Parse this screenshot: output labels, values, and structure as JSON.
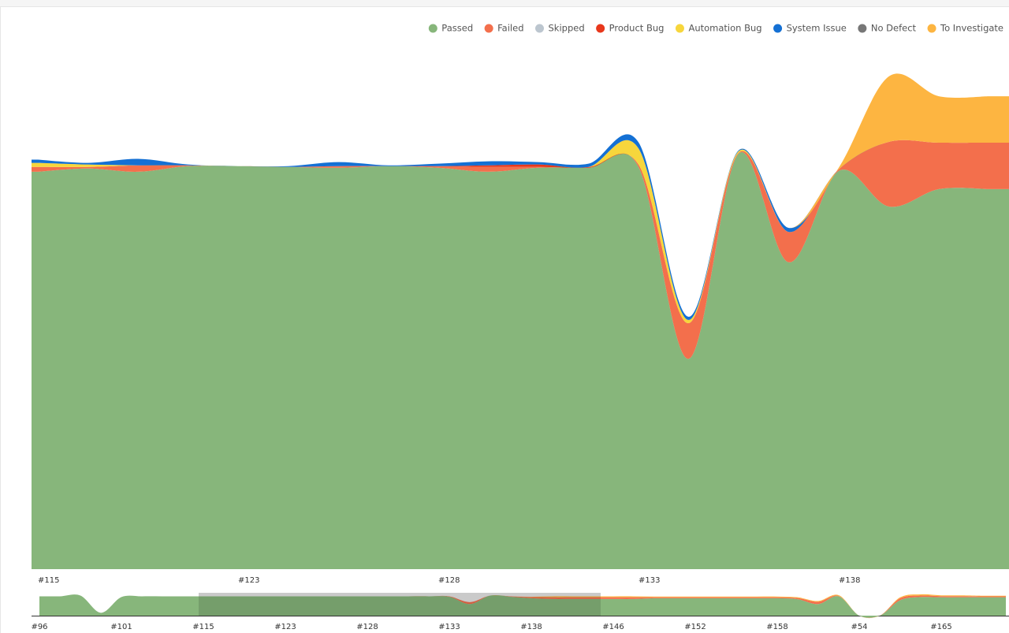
{
  "chart_data": [
    {
      "type": "area",
      "legend": "top-right",
      "ylim": [
        0,
        122
      ],
      "categories": [
        "#115",
        null,
        null,
        null,
        "#123",
        null,
        null,
        null,
        "#128",
        null,
        null,
        null,
        "#133",
        null,
        null,
        null,
        "#138",
        null,
        null,
        null
      ],
      "series": [
        {
          "name": "Passed",
          "color": "#87b67b",
          "values": [
            98.4,
            99.2,
            98.4,
            99.8,
            99.8,
            99.6,
            99.4,
            99.8,
            99.4,
            98.4,
            99.4,
            99.4,
            99.6,
            52.1,
            102.9,
            76,
            98.6,
            89.8,
            94.1,
            94.1
          ]
        },
        {
          "name": "Failed",
          "color": "#f36f4c",
          "values": [
            1.2,
            0.4,
            1.6,
            0.2,
            0,
            0,
            0.4,
            0,
            0.4,
            1.2,
            0.2,
            0,
            0.6,
            8.8,
            0.2,
            7.5,
            0.4,
            16,
            11.5,
            11.5
          ]
        },
        {
          "name": "Skipped",
          "color": "#bcc6cf",
          "values": [
            0,
            0,
            0,
            0,
            0,
            0,
            0,
            0,
            0,
            0,
            0,
            0,
            0,
            0,
            0,
            0,
            0,
            0,
            0,
            0
          ]
        },
        {
          "name": "Product Bug",
          "color": "#e8381c",
          "values": [
            0,
            0,
            0,
            0,
            0,
            0,
            0,
            0,
            0,
            0.4,
            0.6,
            0.2,
            0,
            0,
            0,
            0,
            0,
            0,
            0,
            0
          ]
        },
        {
          "name": "Automation Bug",
          "color": "#f7d63c",
          "values": [
            1,
            0.6,
            0,
            0,
            0,
            0,
            0,
            0,
            0,
            0,
            0,
            0,
            4,
            0.8,
            0.4,
            0,
            0,
            0,
            0,
            0
          ]
        },
        {
          "name": "System Issue",
          "color": "#1470d4",
          "values": [
            0.8,
            0.4,
            1.6,
            0.2,
            0,
            0.2,
            1,
            0.2,
            0.6,
            1,
            0.6,
            0.8,
            1.5,
            0.8,
            0.2,
            1,
            0,
            0,
            0,
            0
          ]
        },
        {
          "name": "No Defect",
          "color": "#777777",
          "values": [
            0,
            0,
            0,
            0,
            0,
            0,
            0,
            0,
            0,
            0,
            0,
            0,
            0,
            0,
            0,
            0,
            0,
            0,
            0,
            0
          ]
        },
        {
          "name": "To Investigate",
          "color": "#fdb541",
          "values": [
            0,
            0,
            0,
            0,
            0,
            0,
            0,
            0,
            0,
            0,
            0,
            0,
            0,
            0,
            0,
            0,
            0.4,
            16.2,
            11.5,
            11.5
          ]
        }
      ]
    },
    {
      "type": "area",
      "ylim": [
        0,
        110
      ],
      "categories": [
        "#96",
        null,
        null,
        null,
        "#101",
        null,
        null,
        null,
        "#115",
        null,
        null,
        null,
        "#123",
        null,
        null,
        null,
        "#128",
        null,
        null,
        null,
        "#133",
        null,
        null,
        null,
        "#138",
        null,
        null,
        null,
        "#146",
        null,
        null,
        null,
        "#152",
        null,
        null,
        null,
        "#158",
        null,
        null,
        null,
        "#54",
        null,
        null,
        null,
        "#165",
        null,
        null
      ],
      "series": [
        {
          "color": "#87b67b",
          "values": [
            100,
            100,
            104,
            15,
            96,
            100,
            100,
            100,
            100,
            100,
            100,
            100,
            100,
            100,
            100,
            100,
            100,
            100,
            100,
            100,
            98,
            60,
            104,
            98,
            90,
            86,
            86,
            86,
            86,
            86,
            90,
            90,
            90,
            90,
            90,
            90,
            90,
            85,
            60,
            100,
            0,
            0,
            80,
            96,
            95,
            95,
            95
          ]
        },
        {
          "color": "#f36f4c",
          "values": [
            0,
            0,
            0,
            0,
            0,
            0,
            0,
            0,
            0,
            0,
            0,
            0,
            0,
            0,
            0,
            0,
            0,
            0,
            0,
            0,
            2,
            10,
            0,
            2,
            6,
            9,
            9,
            9,
            9,
            9,
            5,
            5,
            5,
            5,
            5,
            5,
            5,
            6,
            12,
            2,
            0,
            0,
            10,
            8,
            6,
            6,
            5
          ]
        },
        {
          "color": "#fdb541",
          "values": [
            0,
            0,
            0,
            0,
            0,
            0,
            0,
            0,
            0,
            0,
            0,
            0,
            0,
            0,
            0,
            0,
            0,
            0,
            0,
            0,
            0,
            0,
            0,
            0,
            2,
            5,
            5,
            5,
            5,
            5,
            4,
            4,
            4,
            4,
            4,
            4,
            4,
            4,
            4,
            4,
            0,
            0,
            5,
            6,
            4,
            4,
            3
          ]
        }
      ]
    }
  ]
}
